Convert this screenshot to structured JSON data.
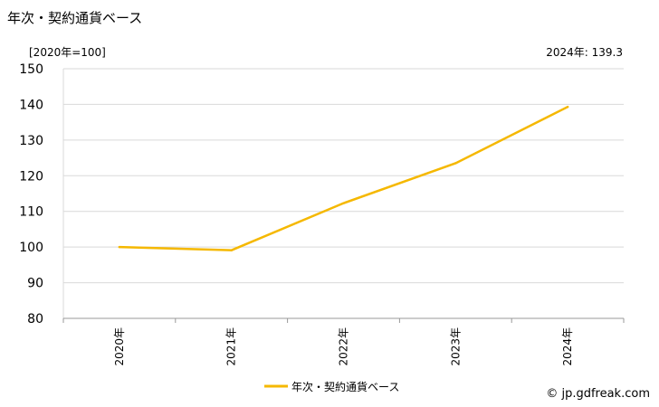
{
  "title": "年次・契約通貨ベース",
  "unit_label": "[2020年=100]",
  "latest": {
    "label": "2024年:",
    "value": "139.3"
  },
  "credit": "© jp.gdfreak.com",
  "colors": {
    "series": "#f5b800",
    "grid": "#d9d9d9",
    "axis": "#999999"
  },
  "chart_data": {
    "type": "line",
    "title": "年次・契約通貨ベース",
    "x": [
      "2020年",
      "2021年",
      "2022年",
      "2023年",
      "2024年"
    ],
    "y_ticks": [
      "80",
      "90",
      "100",
      "110",
      "120",
      "130",
      "140",
      "150"
    ],
    "ylim": [
      80,
      150
    ],
    "grid": true,
    "legend": "bottom-center",
    "series": [
      {
        "name": "年次・契約通貨ベース",
        "values": [
          100.0,
          99.1,
          112.3,
          123.5,
          139.3
        ]
      }
    ]
  }
}
